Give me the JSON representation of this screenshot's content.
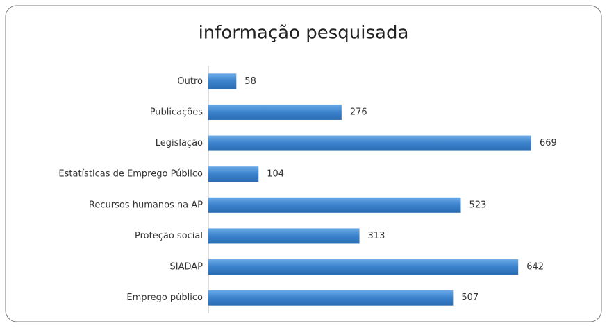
{
  "chart_data": {
    "type": "bar",
    "orientation": "horizontal",
    "title": "informação pesquisada",
    "categories": [
      "Outro",
      "Publicações",
      "Legislação",
      "Estatísticas de Emprego Público",
      "Recursos humanos na AP",
      "Proteção social",
      "SIADAP",
      "Emprego público"
    ],
    "values": [
      58,
      276,
      669,
      104,
      523,
      313,
      642,
      507
    ],
    "color": "#3b82cc",
    "xlim": [
      0,
      800
    ]
  }
}
